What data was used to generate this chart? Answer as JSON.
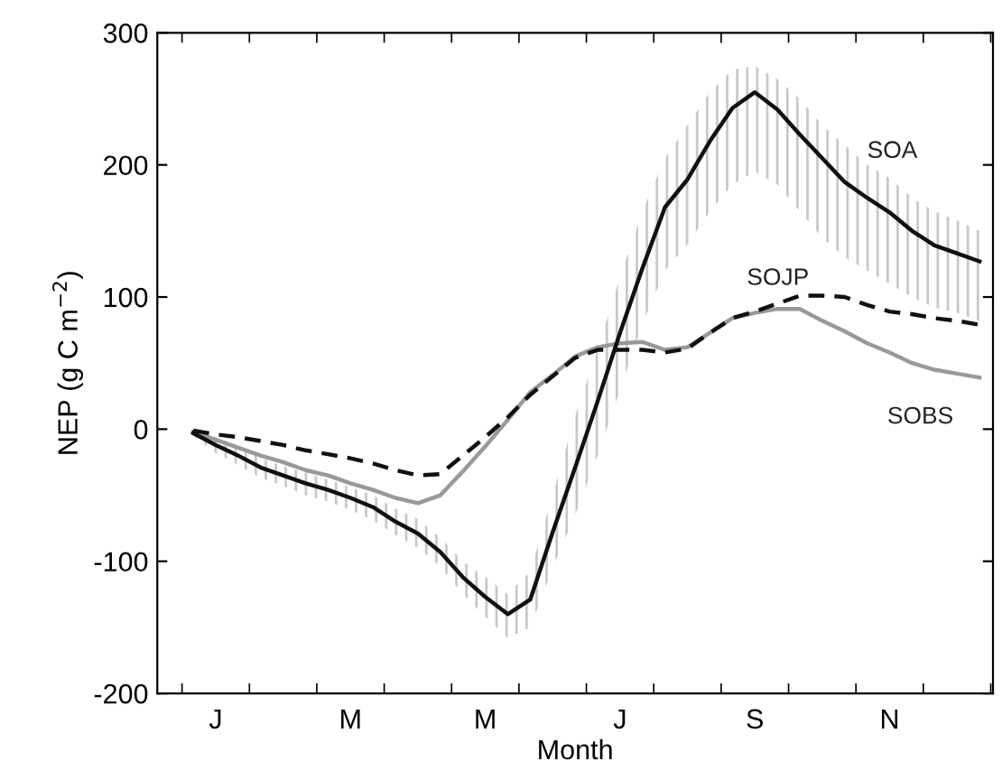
{
  "chart_data": {
    "type": "line",
    "xlabel": "Month",
    "ylabel": "NEP (g C m$^{−2}$)",
    "ylim": [
      -200,
      300
    ],
    "yticks": [
      -200,
      -100,
      0,
      100,
      200,
      300
    ],
    "categories": [
      null,
      "J",
      null,
      null,
      null,
      null,
      null,
      "M",
      null,
      null,
      null,
      null,
      null,
      "M",
      null,
      null,
      null,
      null,
      null,
      "J",
      null,
      null,
      null,
      null,
      null,
      "S",
      null,
      null,
      null,
      null,
      null,
      "N",
      null,
      null,
      null,
      null
    ],
    "grid": false,
    "legend": false,
    "series": [
      {
        "name": "SOA",
        "color": "#111111",
        "line_style": "solid",
        "values": [
          -3,
          -12,
          -20,
          -29,
          -35,
          -41,
          -46,
          -52,
          -59,
          -70,
          -79,
          -93,
          -112,
          -127,
          -140,
          -129,
          -78,
          -29,
          21,
          73,
          122,
          168,
          189,
          218,
          243,
          255,
          242,
          223,
          205,
          187,
          175,
          164,
          150,
          139,
          133,
          127
        ],
        "lower": [
          -5,
          -18,
          -27,
          -37,
          -43,
          -50,
          -55,
          -61,
          -69,
          -80,
          -90,
          -104,
          -125,
          -142,
          -158,
          -150,
          -105,
          -65,
          -20,
          30,
          80,
          120,
          140,
          165,
          185,
          195,
          185,
          165,
          145,
          130,
          120,
          110,
          100,
          92,
          88,
          82
        ],
        "upper": [
          -1,
          -6,
          -13,
          -22,
          -28,
          -33,
          -38,
          -44,
          -50,
          -60,
          -68,
          -82,
          -100,
          -112,
          -125,
          -108,
          -50,
          10,
          60,
          115,
          165,
          205,
          230,
          255,
          272,
          275,
          265,
          250,
          230,
          215,
          200,
          190,
          175,
          165,
          158,
          150
        ]
      },
      {
        "name": "SOJP",
        "color": "#111111",
        "line_style": "dashed",
        "values": [
          -1,
          -4,
          -6,
          -9,
          -12,
          -16,
          -19,
          -22,
          -26,
          -31,
          -35,
          -34,
          -20,
          -6,
          9,
          26,
          40,
          54,
          60,
          60,
          60,
          58,
          61,
          73,
          84,
          89,
          95,
          101,
          101,
          100,
          94,
          89,
          87,
          84,
          82,
          79
        ]
      },
      {
        "name": "SOBS",
        "color": "#999999",
        "line_style": "solid",
        "values": [
          -2,
          -8,
          -14,
          -20,
          -25,
          -31,
          -35,
          -41,
          -46,
          -52,
          -56,
          -50,
          -32,
          -13,
          7,
          28,
          41,
          55,
          62,
          65,
          66,
          60,
          62,
          73,
          84,
          88,
          91,
          91,
          82,
          74,
          65,
          58,
          50,
          45,
          42,
          39
        ]
      }
    ]
  }
}
